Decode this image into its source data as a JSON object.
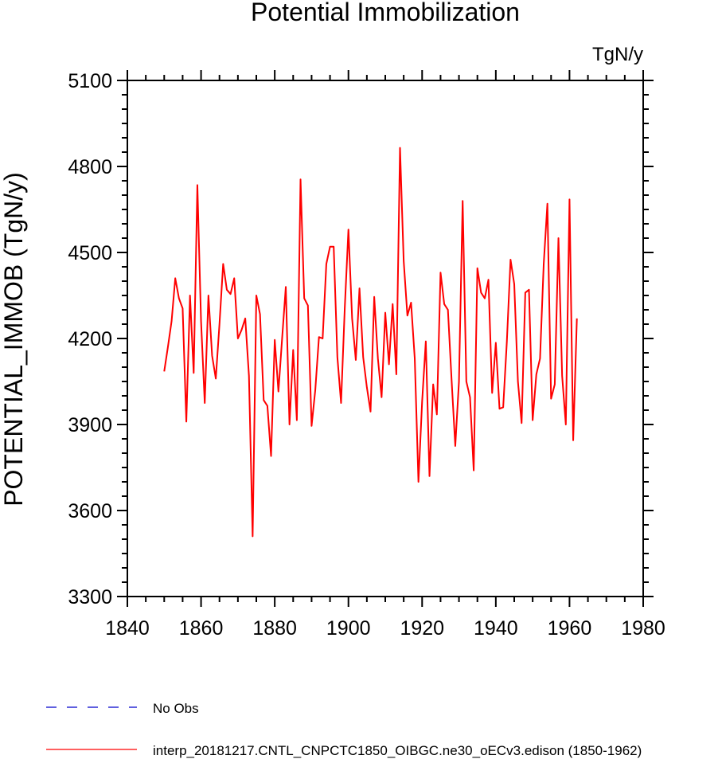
{
  "chart_data": {
    "type": "line",
    "title": "Potential Immobilization",
    "units_label": "TgN/y",
    "xlabel": "",
    "ylabel": "POTENTIAL_IMMOB  (TgN/y)",
    "xlim": [
      1840,
      1980
    ],
    "ylim": [
      3300,
      5100
    ],
    "xticks": [
      1840,
      1860,
      1880,
      1900,
      1920,
      1940,
      1960,
      1980
    ],
    "yticks": [
      3300,
      3600,
      3900,
      4200,
      4500,
      4800,
      5100
    ],
    "x_minor_step": 5,
    "y_minor_step": 50,
    "grid": false,
    "legend_position": "below-plot",
    "series": [
      {
        "name": "No Obs",
        "color": "#0000cc",
        "dash": "dashed",
        "x": [],
        "values": []
      },
      {
        "name": "interp_20181217.CNTL_CNPCTC1850_OIBGC.ne30_oECv3.edison (1850-1962)",
        "color": "#ff0000",
        "dash": "solid",
        "x": [
          1850,
          1851,
          1852,
          1853,
          1854,
          1855,
          1856,
          1857,
          1858,
          1859,
          1860,
          1861,
          1862,
          1863,
          1864,
          1865,
          1866,
          1867,
          1868,
          1869,
          1870,
          1871,
          1872,
          1873,
          1874,
          1875,
          1876,
          1877,
          1878,
          1879,
          1880,
          1881,
          1882,
          1883,
          1884,
          1885,
          1886,
          1887,
          1888,
          1889,
          1890,
          1891,
          1892,
          1893,
          1894,
          1895,
          1896,
          1897,
          1898,
          1899,
          1900,
          1901,
          1902,
          1903,
          1904,
          1905,
          1906,
          1907,
          1908,
          1909,
          1910,
          1911,
          1912,
          1913,
          1914,
          1915,
          1916,
          1917,
          1918,
          1919,
          1920,
          1921,
          1922,
          1923,
          1924,
          1925,
          1926,
          1927,
          1928,
          1929,
          1930,
          1931,
          1932,
          1933,
          1934,
          1935,
          1936,
          1937,
          1938,
          1939,
          1940,
          1941,
          1942,
          1943,
          1944,
          1945,
          1946,
          1947,
          1948,
          1949,
          1950,
          1951,
          1952,
          1953,
          1954,
          1955,
          1956,
          1957,
          1958,
          1959,
          1960,
          1961,
          1962
        ],
        "values": [
          4085,
          4170,
          4260,
          4410,
          4340,
          4305,
          3910,
          4350,
          4080,
          4735,
          4260,
          3975,
          4350,
          4140,
          4060,
          4250,
          4460,
          4370,
          4355,
          4410,
          4200,
          4230,
          4270,
          4070,
          3510,
          4350,
          4285,
          3985,
          3965,
          3790,
          4195,
          4015,
          4200,
          4380,
          3900,
          4160,
          3915,
          4755,
          4340,
          4315,
          3895,
          4020,
          4205,
          4200,
          4460,
          4520,
          4520,
          4135,
          3975,
          4305,
          4580,
          4270,
          4125,
          4375,
          4135,
          4030,
          3945,
          4345,
          4130,
          3995,
          4290,
          4110,
          4320,
          4075,
          4865,
          4470,
          4280,
          4325,
          4130,
          3700,
          3980,
          4190,
          3720,
          4040,
          3935,
          4430,
          4320,
          4300,
          4055,
          3825,
          4050,
          4680,
          4050,
          3995,
          3740,
          4445,
          4360,
          4340,
          4405,
          4010,
          4185,
          3955,
          3960,
          4190,
          4475,
          4390,
          4050,
          3905,
          4360,
          4370,
          3915,
          4075,
          4130,
          4460,
          4670,
          3990,
          4040,
          4550,
          4070,
          3900,
          4685,
          3845,
          4270
        ]
      }
    ]
  }
}
